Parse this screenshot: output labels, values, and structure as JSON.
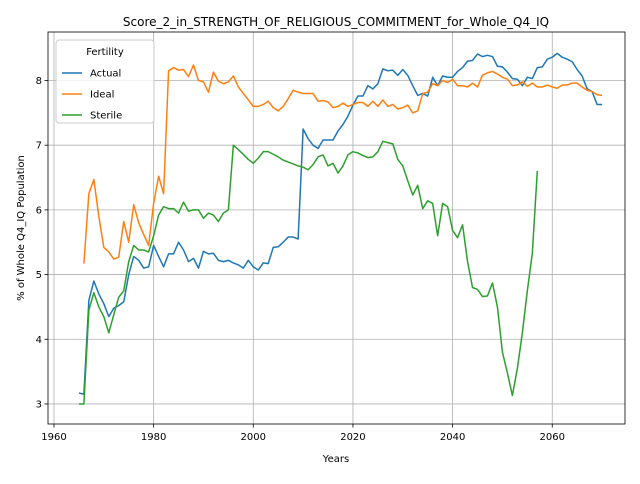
{
  "chart_data": {
    "type": "line",
    "title": "Score_2_in_STRENGTH_OF_RELIGIOUS_COMMITMENT_for_Whole_Q4_IQ",
    "xlabel": "Years",
    "ylabel": "% of Whole Q4_IQ Population",
    "legend_title": "Fertility",
    "legend": "upper left",
    "grid": true,
    "x": [
      1965,
      1966,
      1967,
      1968,
      1969,
      1970,
      1971,
      1972,
      1973,
      1974,
      1975,
      1976,
      1977,
      1978,
      1979,
      1980,
      1981,
      1982,
      1983,
      1984,
      1985,
      1986,
      1987,
      1988,
      1989,
      1990,
      1991,
      1992,
      1993,
      1994,
      1995,
      1996,
      1997,
      1998,
      1999,
      2000,
      2001,
      2002,
      2003,
      2004,
      2005,
      2006,
      2007,
      2008,
      2009,
      2010,
      2011,
      2012,
      2013,
      2014,
      2015,
      2016,
      2017,
      2018,
      2019,
      2020,
      2021,
      2022,
      2023,
      2024,
      2025,
      2026,
      2027,
      2028,
      2029,
      2030,
      2031,
      2032,
      2033,
      2034,
      2035,
      2036,
      2037,
      2038,
      2039,
      2040,
      2041,
      2042,
      2043,
      2044,
      2045,
      2046,
      2047,
      2048,
      2049,
      2050,
      2051,
      2052,
      2053,
      2054,
      2055,
      2056,
      2057,
      2058,
      2059,
      2060,
      2061,
      2062,
      2063,
      2064,
      2065,
      2066,
      2067,
      2068,
      2069,
      2070
    ],
    "xlim": [
      1958.8,
      2074.6
    ],
    "xticks": [
      1960,
      1980,
      2000,
      2020,
      2040,
      2060
    ],
    "ylim": [
      2.69,
      8.75
    ],
    "yticks": [
      3,
      4,
      5,
      6,
      7,
      8
    ],
    "series": [
      {
        "name": "Actual",
        "color": "#1f77b4",
        "values": [
          3.17,
          3.15,
          4.6,
          4.9,
          4.7,
          4.55,
          4.35,
          4.48,
          4.52,
          4.58,
          5.0,
          5.28,
          5.22,
          5.1,
          5.12,
          5.45,
          5.28,
          5.12,
          5.32,
          5.32,
          5.5,
          5.38,
          5.2,
          5.25,
          5.1,
          5.36,
          5.32,
          5.33,
          5.22,
          5.2,
          5.22,
          5.18,
          5.15,
          5.1,
          5.22,
          5.12,
          5.07,
          5.18,
          5.17,
          5.42,
          5.43,
          5.5,
          5.58,
          5.58,
          5.55,
          7.25,
          7.1,
          7.0,
          6.95,
          7.08,
          7.08,
          7.08,
          7.22,
          7.32,
          7.45,
          7.62,
          7.76,
          7.76,
          7.92,
          7.87,
          7.95,
          8.18,
          8.15,
          8.16,
          8.08,
          8.17,
          8.08,
          7.92,
          7.77,
          7.8,
          7.76,
          8.05,
          7.92,
          8.07,
          8.05,
          8.05,
          8.14,
          8.2,
          8.3,
          8.31,
          8.41,
          8.37,
          8.39,
          8.37,
          8.22,
          8.21,
          8.13,
          8.03,
          8.02,
          7.92,
          8.05,
          8.03,
          8.2,
          8.21,
          8.33,
          8.36,
          8.42,
          8.36,
          8.33,
          8.29,
          8.17,
          8.07,
          7.87,
          7.83,
          7.63,
          7.63
        ]
      },
      {
        "name": "Ideal",
        "color": "#ff7f0e",
        "values": [
          null,
          5.17,
          6.25,
          6.47,
          5.9,
          5.42,
          5.35,
          5.24,
          5.27,
          5.82,
          5.5,
          6.08,
          5.8,
          5.62,
          5.45,
          6.1,
          6.52,
          6.25,
          8.15,
          8.2,
          8.16,
          8.17,
          8.06,
          8.24,
          8.0,
          7.98,
          7.82,
          8.13,
          7.99,
          7.95,
          7.98,
          8.07,
          7.9,
          7.8,
          7.7,
          7.6,
          7.6,
          7.63,
          7.68,
          7.58,
          7.53,
          7.6,
          7.72,
          7.85,
          7.82,
          7.8,
          7.8,
          7.8,
          7.68,
          7.69,
          7.67,
          7.58,
          7.6,
          7.65,
          7.6,
          7.63,
          7.66,
          7.66,
          7.6,
          7.68,
          7.6,
          7.7,
          7.6,
          7.63,
          7.56,
          7.58,
          7.62,
          7.5,
          7.53,
          7.8,
          7.82,
          7.95,
          7.92,
          8.0,
          7.97,
          8.02,
          7.92,
          7.92,
          7.9,
          7.96,
          7.9,
          8.08,
          8.12,
          8.14,
          8.1,
          8.05,
          8.02,
          7.92,
          7.93,
          7.98,
          7.91,
          7.96,
          7.9,
          7.9,
          7.93,
          7.9,
          7.88,
          7.93,
          7.93,
          7.96,
          7.96,
          7.9,
          7.85,
          7.83,
          7.78,
          7.77
        ]
      },
      {
        "name": "Sterile",
        "color": "#2ca02c",
        "values": [
          3.0,
          3.0,
          4.45,
          4.72,
          4.5,
          4.35,
          4.1,
          4.38,
          4.65,
          4.75,
          5.2,
          5.45,
          5.38,
          5.38,
          5.35,
          5.6,
          5.92,
          6.05,
          6.02,
          6.02,
          5.95,
          6.12,
          5.98,
          6.0,
          6.0,
          5.87,
          5.95,
          5.92,
          5.82,
          5.95,
          6.0,
          7.0,
          6.93,
          6.86,
          6.78,
          6.72,
          6.8,
          6.9,
          6.9,
          6.86,
          6.82,
          6.77,
          6.74,
          6.71,
          6.68,
          6.66,
          6.62,
          6.7,
          6.82,
          6.85,
          6.68,
          6.72,
          6.57,
          6.68,
          6.85,
          6.9,
          6.88,
          6.84,
          6.81,
          6.82,
          6.9,
          7.06,
          7.04,
          7.02,
          6.78,
          6.68,
          6.45,
          6.23,
          6.38,
          6.02,
          6.14,
          6.1,
          5.6,
          6.1,
          6.05,
          5.68,
          5.57,
          5.77,
          5.2,
          4.8,
          4.77,
          4.66,
          4.67,
          4.87,
          4.5,
          3.8,
          3.48,
          3.13,
          3.55,
          4.1,
          4.75,
          5.33,
          6.6,
          null,
          null,
          null,
          null,
          null,
          null,
          null,
          null,
          null,
          null,
          null,
          null,
          null
        ]
      }
    ]
  }
}
